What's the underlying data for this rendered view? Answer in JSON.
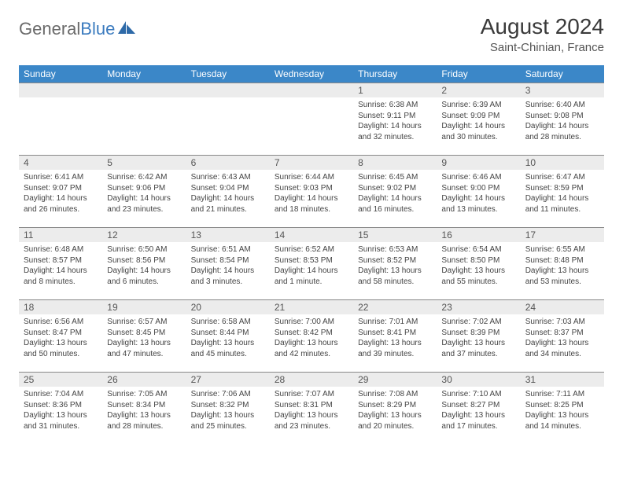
{
  "brand": {
    "text1": "General",
    "text2": "Blue"
  },
  "title": "August 2024",
  "location": "Saint-Chinian, France",
  "colors": {
    "header_bg": "#3b87c8",
    "header_text": "#ffffff",
    "daynum_bg": "#ececec",
    "border": "#888888",
    "brand_gray": "#6a6a6a",
    "brand_blue": "#3b7bbf"
  },
  "weekdays": [
    "Sunday",
    "Monday",
    "Tuesday",
    "Wednesday",
    "Thursday",
    "Friday",
    "Saturday"
  ],
  "weeks": [
    [
      {
        "n": "",
        "sr": "",
        "ss": "",
        "dl": ""
      },
      {
        "n": "",
        "sr": "",
        "ss": "",
        "dl": ""
      },
      {
        "n": "",
        "sr": "",
        "ss": "",
        "dl": ""
      },
      {
        "n": "",
        "sr": "",
        "ss": "",
        "dl": ""
      },
      {
        "n": "1",
        "sr": "6:38 AM",
        "ss": "9:11 PM",
        "dl": "14 hours and 32 minutes."
      },
      {
        "n": "2",
        "sr": "6:39 AM",
        "ss": "9:09 PM",
        "dl": "14 hours and 30 minutes."
      },
      {
        "n": "3",
        "sr": "6:40 AM",
        "ss": "9:08 PM",
        "dl": "14 hours and 28 minutes."
      }
    ],
    [
      {
        "n": "4",
        "sr": "6:41 AM",
        "ss": "9:07 PM",
        "dl": "14 hours and 26 minutes."
      },
      {
        "n": "5",
        "sr": "6:42 AM",
        "ss": "9:06 PM",
        "dl": "14 hours and 23 minutes."
      },
      {
        "n": "6",
        "sr": "6:43 AM",
        "ss": "9:04 PM",
        "dl": "14 hours and 21 minutes."
      },
      {
        "n": "7",
        "sr": "6:44 AM",
        "ss": "9:03 PM",
        "dl": "14 hours and 18 minutes."
      },
      {
        "n": "8",
        "sr": "6:45 AM",
        "ss": "9:02 PM",
        "dl": "14 hours and 16 minutes."
      },
      {
        "n": "9",
        "sr": "6:46 AM",
        "ss": "9:00 PM",
        "dl": "14 hours and 13 minutes."
      },
      {
        "n": "10",
        "sr": "6:47 AM",
        "ss": "8:59 PM",
        "dl": "14 hours and 11 minutes."
      }
    ],
    [
      {
        "n": "11",
        "sr": "6:48 AM",
        "ss": "8:57 PM",
        "dl": "14 hours and 8 minutes."
      },
      {
        "n": "12",
        "sr": "6:50 AM",
        "ss": "8:56 PM",
        "dl": "14 hours and 6 minutes."
      },
      {
        "n": "13",
        "sr": "6:51 AM",
        "ss": "8:54 PM",
        "dl": "14 hours and 3 minutes."
      },
      {
        "n": "14",
        "sr": "6:52 AM",
        "ss": "8:53 PM",
        "dl": "14 hours and 1 minute."
      },
      {
        "n": "15",
        "sr": "6:53 AM",
        "ss": "8:52 PM",
        "dl": "13 hours and 58 minutes."
      },
      {
        "n": "16",
        "sr": "6:54 AM",
        "ss": "8:50 PM",
        "dl": "13 hours and 55 minutes."
      },
      {
        "n": "17",
        "sr": "6:55 AM",
        "ss": "8:48 PM",
        "dl": "13 hours and 53 minutes."
      }
    ],
    [
      {
        "n": "18",
        "sr": "6:56 AM",
        "ss": "8:47 PM",
        "dl": "13 hours and 50 minutes."
      },
      {
        "n": "19",
        "sr": "6:57 AM",
        "ss": "8:45 PM",
        "dl": "13 hours and 47 minutes."
      },
      {
        "n": "20",
        "sr": "6:58 AM",
        "ss": "8:44 PM",
        "dl": "13 hours and 45 minutes."
      },
      {
        "n": "21",
        "sr": "7:00 AM",
        "ss": "8:42 PM",
        "dl": "13 hours and 42 minutes."
      },
      {
        "n": "22",
        "sr": "7:01 AM",
        "ss": "8:41 PM",
        "dl": "13 hours and 39 minutes."
      },
      {
        "n": "23",
        "sr": "7:02 AM",
        "ss": "8:39 PM",
        "dl": "13 hours and 37 minutes."
      },
      {
        "n": "24",
        "sr": "7:03 AM",
        "ss": "8:37 PM",
        "dl": "13 hours and 34 minutes."
      }
    ],
    [
      {
        "n": "25",
        "sr": "7:04 AM",
        "ss": "8:36 PM",
        "dl": "13 hours and 31 minutes."
      },
      {
        "n": "26",
        "sr": "7:05 AM",
        "ss": "8:34 PM",
        "dl": "13 hours and 28 minutes."
      },
      {
        "n": "27",
        "sr": "7:06 AM",
        "ss": "8:32 PM",
        "dl": "13 hours and 25 minutes."
      },
      {
        "n": "28",
        "sr": "7:07 AM",
        "ss": "8:31 PM",
        "dl": "13 hours and 23 minutes."
      },
      {
        "n": "29",
        "sr": "7:08 AM",
        "ss": "8:29 PM",
        "dl": "13 hours and 20 minutes."
      },
      {
        "n": "30",
        "sr": "7:10 AM",
        "ss": "8:27 PM",
        "dl": "13 hours and 17 minutes."
      },
      {
        "n": "31",
        "sr": "7:11 AM",
        "ss": "8:25 PM",
        "dl": "13 hours and 14 minutes."
      }
    ]
  ],
  "labels": {
    "sunrise": "Sunrise:",
    "sunset": "Sunset:",
    "daylight": "Daylight:"
  }
}
